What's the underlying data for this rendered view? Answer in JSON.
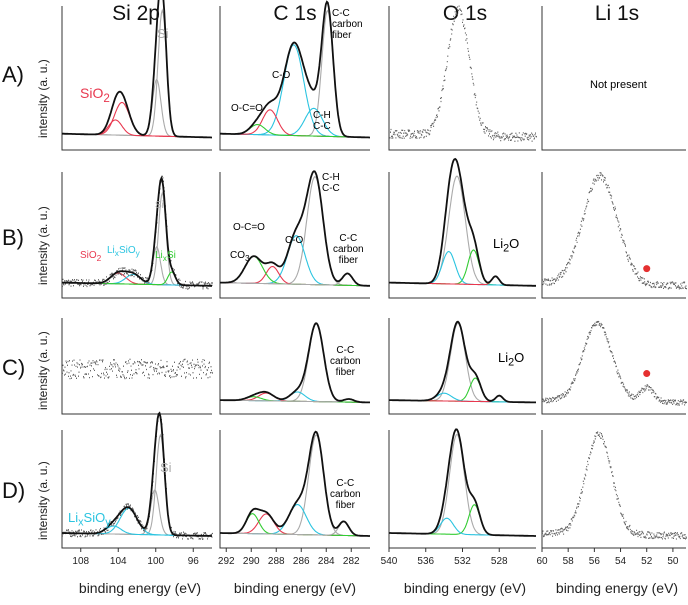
{
  "column_titles": [
    "Si 2p",
    "C 1s",
    "O 1s",
    "Li 1s"
  ],
  "row_labels": [
    "A)",
    "B)",
    "C)",
    "D)"
  ],
  "ylabel": "intensity (a. u.)",
  "xlabel": "binding energy (eV)",
  "not_present": "Not present",
  "colors": {
    "sum": "#111111",
    "component": "#aaaaaa",
    "red": "#e8384f",
    "cyan": "#2bc4e0",
    "green": "#33cc33",
    "data": "#666666",
    "marker": "#e53030"
  },
  "annotations": {
    "siA_si": "Si",
    "siA_sio2": "SiO2",
    "siB_si": "Si",
    "siB_sio2": "SiO2",
    "siB_lisio": "LixSiOy",
    "siB_lisi": "LixSi",
    "siD_si": "Si",
    "siD_lisio": "LixSiOy",
    "cA_cc": "C-C",
    "cA_cf": "carbon\nfiber",
    "cA_co": "C-O",
    "cA_ch": "C-H\nC-C",
    "cA_occo": "O-C=O",
    "cB_ch": "C-H\nC-C",
    "cB_occo": "O-C=O",
    "cB_co": "C-O",
    "cB_co3": "CO3",
    "cB_cc": "C-C\ncarbon\nfiber",
    "cC_cc": "C-C\ncarbon\nfiber",
    "cD_cc": "C-C\ncarbon\nfiber",
    "oB_li2o": "Li2O",
    "oC_li2o": "Li2O"
  },
  "chart_data": [
    {
      "type": "line",
      "column": "Si 2p",
      "xlim": [
        110,
        94
      ],
      "xticks": [
        108,
        104,
        100,
        96
      ],
      "panels": {
        "A": {
          "noise": false,
          "peaks": [
            {
              "c": 99.3,
              "h": 1.0,
              "w": 0.45,
              "color": "component"
            },
            {
              "c": 99.9,
              "h": 0.45,
              "w": 0.45,
              "color": "component"
            },
            {
              "c": 103.6,
              "h": 0.26,
              "w": 0.8,
              "color": "red"
            },
            {
              "c": 104.3,
              "h": 0.12,
              "w": 0.7,
              "color": "red"
            }
          ]
        },
        "B": {
          "noise": true,
          "peaks": [
            {
              "c": 99.3,
              "h": 0.85,
              "w": 0.4,
              "color": "component"
            },
            {
              "c": 99.9,
              "h": 0.35,
              "w": 0.4,
              "color": "component"
            },
            {
              "c": 104.0,
              "h": 0.1,
              "w": 0.8,
              "color": "red"
            },
            {
              "c": 102.4,
              "h": 0.09,
              "w": 0.8,
              "color": "cyan"
            },
            {
              "c": 98.3,
              "h": 0.12,
              "w": 0.4,
              "color": "green"
            }
          ]
        },
        "C": {
          "noise": true,
          "flat": true,
          "peaks": []
        },
        "D": {
          "noise": true,
          "peaks": [
            {
              "c": 99.5,
              "h": 1.0,
              "w": 0.45,
              "color": "component"
            },
            {
              "c": 100.1,
              "h": 0.45,
              "w": 0.45,
              "color": "component"
            },
            {
              "c": 102.9,
              "h": 0.26,
              "w": 0.9,
              "color": "cyan"
            },
            {
              "c": 104.5,
              "h": 0.08,
              "w": 0.8,
              "color": "cyan"
            }
          ]
        }
      }
    },
    {
      "type": "line",
      "column": "C 1s",
      "xlim": [
        292.5,
        280.5
      ],
      "xticks": [
        292,
        290,
        288,
        286,
        284,
        282
      ],
      "panels": {
        "A": {
          "noise": false,
          "peaks": [
            {
              "c": 283.9,
              "h": 1.0,
              "w": 0.45,
              "color": "component"
            },
            {
              "c": 286.6,
              "h": 0.72,
              "w": 0.8,
              "color": "cyan"
            },
            {
              "c": 285.0,
              "h": 0.22,
              "w": 0.7,
              "color": "cyan"
            },
            {
              "c": 288.5,
              "h": 0.2,
              "w": 0.6,
              "color": "red"
            },
            {
              "c": 289.5,
              "h": 0.08,
              "w": 0.6,
              "color": "green"
            }
          ]
        },
        "B": {
          "noise": false,
          "peaks": [
            {
              "c": 284.9,
              "h": 1.0,
              "w": 0.65,
              "color": "component"
            },
            {
              "c": 286.4,
              "h": 0.45,
              "w": 0.7,
              "color": "cyan"
            },
            {
              "c": 288.3,
              "h": 0.16,
              "w": 0.5,
              "color": "red"
            },
            {
              "c": 289.8,
              "h": 0.25,
              "w": 0.7,
              "color": "green"
            },
            {
              "c": 282.3,
              "h": 0.11,
              "w": 0.4,
              "color": "component"
            }
          ]
        },
        "C": {
          "noise": false,
          "peaks": [
            {
              "c": 284.8,
              "h": 1.0,
              "w": 0.6,
              "color": "component"
            },
            {
              "c": 286.3,
              "h": 0.12,
              "w": 0.6,
              "color": "cyan"
            },
            {
              "c": 288.8,
              "h": 0.1,
              "w": 0.6,
              "color": "red"
            },
            {
              "c": 289.8,
              "h": 0.05,
              "w": 0.6,
              "color": "green"
            },
            {
              "c": 282.2,
              "h": 0.04,
              "w": 0.4,
              "color": "component"
            }
          ]
        },
        "D": {
          "noise": false,
          "peaks": [
            {
              "c": 284.8,
              "h": 1.0,
              "w": 0.6,
              "color": "component"
            },
            {
              "c": 286.3,
              "h": 0.3,
              "w": 0.7,
              "color": "cyan"
            },
            {
              "c": 288.8,
              "h": 0.2,
              "w": 0.6,
              "color": "red"
            },
            {
              "c": 289.9,
              "h": 0.2,
              "w": 0.5,
              "color": "green"
            },
            {
              "c": 282.6,
              "h": 0.14,
              "w": 0.4,
              "color": "component"
            }
          ]
        }
      }
    },
    {
      "type": "line",
      "column": "O 1s",
      "xlim": [
        540,
        524
      ],
      "xticks": [
        540,
        536,
        532,
        528
      ],
      "panels": {
        "A": {
          "noise": true,
          "datacurve": true,
          "peaks": [
            {
              "c": 532.5,
              "h": 1.0,
              "w": 1.2,
              "color": "data"
            }
          ]
        },
        "B": {
          "noise": false,
          "peaks": [
            {
              "c": 532.6,
              "h": 1.0,
              "w": 0.9,
              "color": "component"
            },
            {
              "c": 530.8,
              "h": 0.32,
              "w": 0.6,
              "color": "green"
            },
            {
              "c": 533.5,
              "h": 0.3,
              "w": 0.7,
              "color": "cyan"
            },
            {
              "c": 528.4,
              "h": 0.08,
              "w": 0.4,
              "color": "red"
            }
          ]
        },
        "C": {
          "noise": false,
          "peaks": [
            {
              "c": 532.5,
              "h": 1.0,
              "w": 0.8,
              "color": "component"
            },
            {
              "c": 530.6,
              "h": 0.3,
              "w": 0.6,
              "color": "green"
            },
            {
              "c": 534.0,
              "h": 0.1,
              "w": 0.8,
              "color": "cyan"
            },
            {
              "c": 528.0,
              "h": 0.08,
              "w": 0.4,
              "color": "red"
            }
          ]
        },
        "D": {
          "noise": false,
          "peaks": [
            {
              "c": 532.6,
              "h": 1.0,
              "w": 0.8,
              "color": "component"
            },
            {
              "c": 530.7,
              "h": 0.3,
              "w": 0.6,
              "color": "green"
            },
            {
              "c": 533.7,
              "h": 0.16,
              "w": 0.7,
              "color": "cyan"
            }
          ]
        }
      }
    },
    {
      "type": "scatter",
      "column": "Li 1s",
      "xlim": [
        60,
        49
      ],
      "xticks": [
        60,
        58,
        56,
        54,
        52,
        50
      ],
      "panels": {
        "A": {
          "present": false,
          "peaks": []
        },
        "B": {
          "noise": true,
          "datacurve": true,
          "marker": 52.0,
          "peaks": [
            {
              "c": 55.6,
              "h": 1.0,
              "w": 1.3,
              "color": "data"
            }
          ]
        },
        "C": {
          "noise": true,
          "datacurve": true,
          "marker": 52.0,
          "peaks": [
            {
              "c": 55.8,
              "h": 1.0,
              "w": 1.1,
              "color": "data"
            },
            {
              "c": 52.0,
              "h": 0.18,
              "w": 0.5,
              "color": "data"
            }
          ]
        },
        "D": {
          "noise": true,
          "datacurve": true,
          "peaks": [
            {
              "c": 55.7,
              "h": 1.0,
              "w": 1.0,
              "color": "data"
            }
          ]
        }
      }
    }
  ]
}
